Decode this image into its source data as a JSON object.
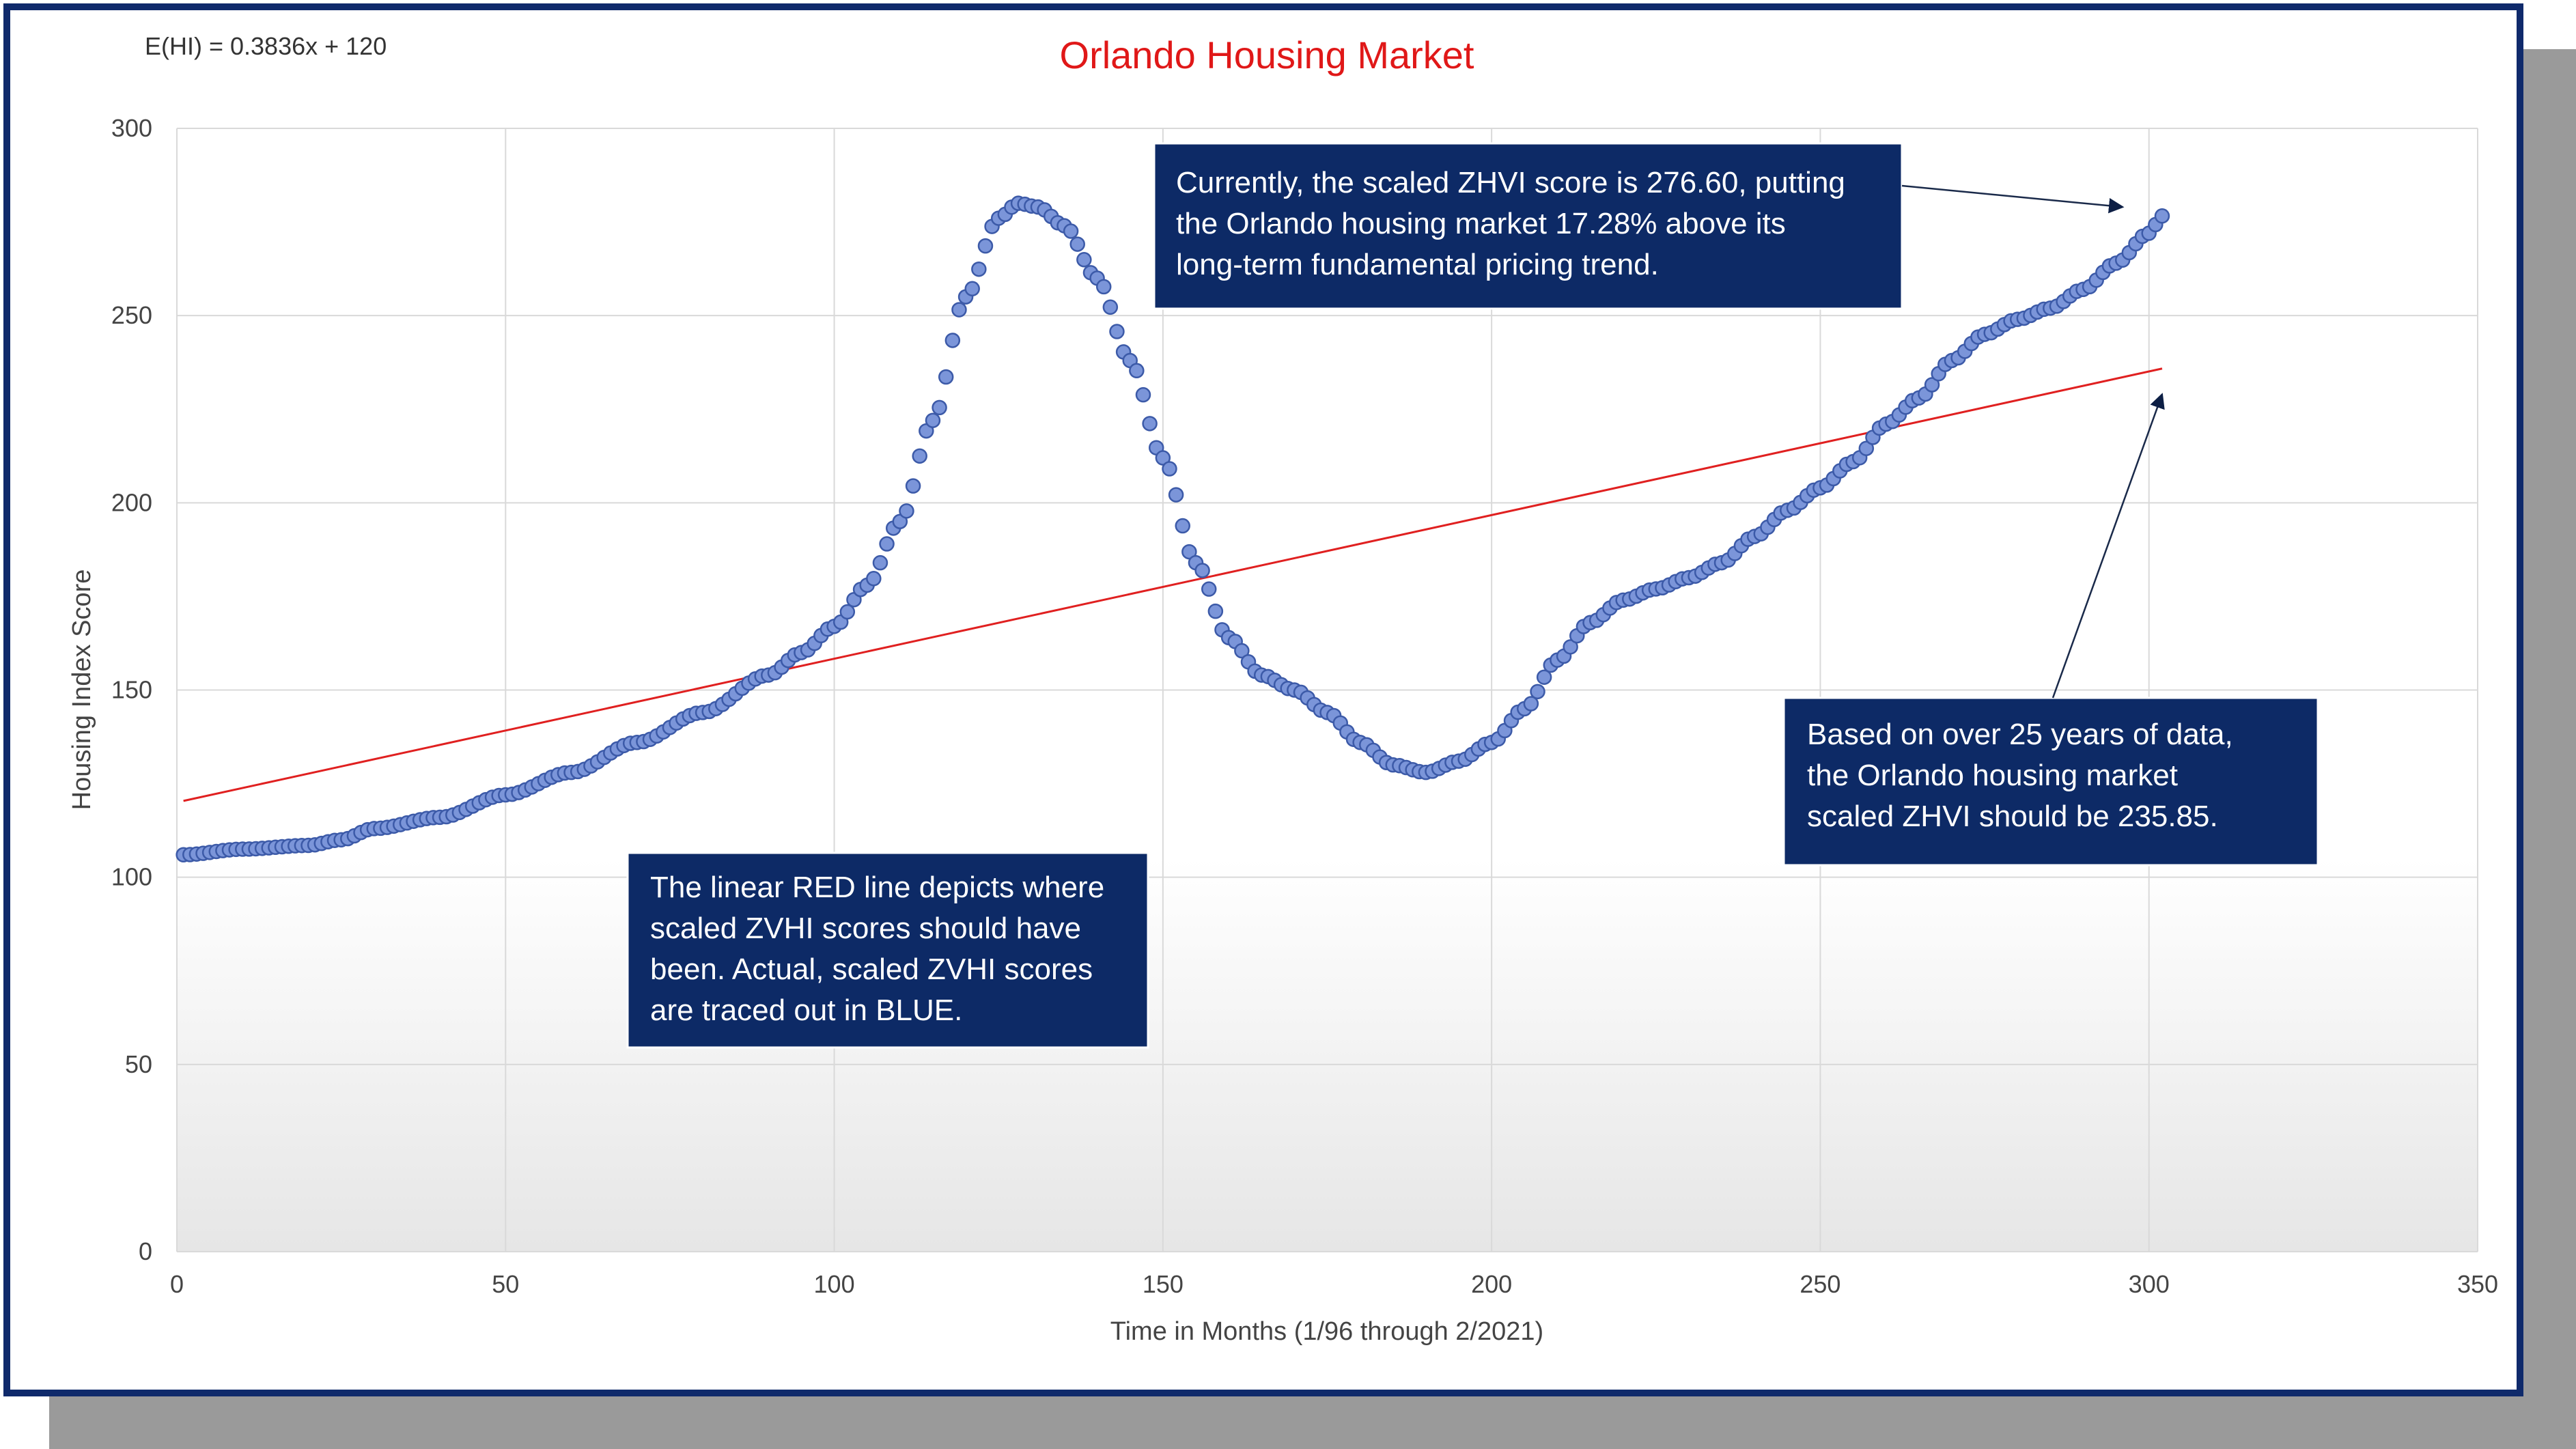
{
  "chart_data": {
    "type": "scatter",
    "title": "Orlando Housing Market",
    "equation": "E(HI) = 0.3836x + 120",
    "xlabel": "Time in Months (1/96 through 2/2021)",
    "ylabel": "Housing Index Score",
    "xlim": [
      0,
      350
    ],
    "ylim": [
      0,
      300
    ],
    "x_ticks": [
      0,
      50,
      100,
      150,
      200,
      250,
      300,
      350
    ],
    "y_ticks": [
      0,
      50,
      100,
      150,
      200,
      250,
      300
    ],
    "trendline": {
      "slope": 0.3836,
      "intercept": 120,
      "x_range": [
        1,
        302
      ],
      "color": "#e02020"
    },
    "series": [
      {
        "name": "Scaled ZHVI",
        "color": "#7b95d9",
        "key_points": [
          {
            "x": 1,
            "y": 106
          },
          {
            "x": 10,
            "y": 107.5
          },
          {
            "x": 20,
            "y": 108.5
          },
          {
            "x": 25,
            "y": 110
          },
          {
            "x": 30,
            "y": 113
          },
          {
            "x": 40,
            "y": 116
          },
          {
            "x": 50,
            "y": 122
          },
          {
            "x": 60,
            "y": 128
          },
          {
            "x": 70,
            "y": 136
          },
          {
            "x": 80,
            "y": 144
          },
          {
            "x": 90,
            "y": 154
          },
          {
            "x": 95,
            "y": 160
          },
          {
            "x": 100,
            "y": 167
          },
          {
            "x": 105,
            "y": 178
          },
          {
            "x": 110,
            "y": 195
          },
          {
            "x": 115,
            "y": 222
          },
          {
            "x": 120,
            "y": 255
          },
          {
            "x": 125,
            "y": 276
          },
          {
            "x": 128,
            "y": 280
          },
          {
            "x": 131,
            "y": 279
          },
          {
            "x": 135,
            "y": 274
          },
          {
            "x": 140,
            "y": 260
          },
          {
            "x": 145,
            "y": 238
          },
          {
            "x": 150,
            "y": 212
          },
          {
            "x": 155,
            "y": 184
          },
          {
            "x": 160,
            "y": 164
          },
          {
            "x": 165,
            "y": 154
          },
          {
            "x": 170,
            "y": 150
          },
          {
            "x": 175,
            "y": 144
          },
          {
            "x": 180,
            "y": 136
          },
          {
            "x": 185,
            "y": 130
          },
          {
            "x": 190,
            "y": 128
          },
          {
            "x": 195,
            "y": 131
          },
          {
            "x": 200,
            "y": 136
          },
          {
            "x": 205,
            "y": 145
          },
          {
            "x": 210,
            "y": 158
          },
          {
            "x": 215,
            "y": 168
          },
          {
            "x": 220,
            "y": 174
          },
          {
            "x": 225,
            "y": 177
          },
          {
            "x": 230,
            "y": 180
          },
          {
            "x": 235,
            "y": 184
          },
          {
            "x": 240,
            "y": 191
          },
          {
            "x": 245,
            "y": 198
          },
          {
            "x": 250,
            "y": 204
          },
          {
            "x": 255,
            "y": 211
          },
          {
            "x": 260,
            "y": 221
          },
          {
            "x": 265,
            "y": 228
          },
          {
            "x": 270,
            "y": 238
          },
          {
            "x": 275,
            "y": 245
          },
          {
            "x": 280,
            "y": 249
          },
          {
            "x": 285,
            "y": 252
          },
          {
            "x": 290,
            "y": 257
          },
          {
            "x": 295,
            "y": 264
          },
          {
            "x": 300,
            "y": 272
          },
          {
            "x": 302,
            "y": 276.6
          }
        ]
      }
    ],
    "annotations": {
      "current": {
        "lines": [
          "Currently, the scaled ZHVI score is 276.60, putting",
          "the Orlando housing market 17.28% above its",
          "long-term fundamental pricing trend."
        ],
        "target": {
          "x": 296,
          "y": 279
        }
      },
      "fundamental": {
        "lines": [
          "Based on over 25 years of data,",
          "the Orlando housing market",
          "scaled ZHVI should be 235.85."
        ],
        "target": {
          "x": 302,
          "y": 229
        }
      },
      "legend_note": {
        "lines": [
          "The linear RED line depicts where",
          "scaled ZVHI scores should have",
          "been.  Actual, scaled ZVHI scores",
          "are traced out in BLUE."
        ]
      }
    }
  },
  "colors": {
    "title": "#e01818",
    "callout": "#0d2a66",
    "frame": "#0f2a6b",
    "trend": "#e02020",
    "dot_fill": "#7b95d9",
    "dot_stroke": "#3c5aa8"
  }
}
